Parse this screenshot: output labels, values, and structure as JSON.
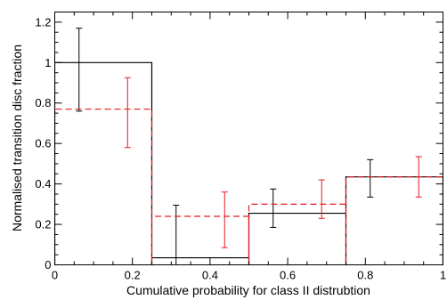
{
  "chart_data": {
    "type": "step",
    "title": "",
    "xlabel": "Cumulative probability for class II distrubtion",
    "ylabel": "Normalised transition disc fraction",
    "xlim": [
      0,
      1
    ],
    "ylim": [
      0,
      1.25
    ],
    "grid": false,
    "legend": "none",
    "x_ticks": [
      0,
      0.2,
      0.4,
      0.6,
      0.8,
      1
    ],
    "x_tick_labels": [
      "0",
      "0.2",
      "0.4",
      "0.6",
      "0.8",
      "1"
    ],
    "y_ticks": [
      0,
      0.2,
      0.4,
      0.6,
      0.8,
      1,
      1.2
    ],
    "y_tick_labels": [
      "0",
      "0.2",
      "0.4",
      "0.6",
      "0.8",
      "1",
      "1.2"
    ],
    "bin_edges": [
      0,
      0.25,
      0.5,
      0.75,
      1
    ],
    "series": [
      {
        "color": "#000000",
        "linestyle": "solid",
        "values": [
          1.0,
          0.035,
          0.255,
          0.435
        ],
        "error_x": [
          0.0625,
          0.3125,
          0.5625,
          0.8125
        ],
        "error_center": [
          0.965,
          0.095,
          0.28,
          0.43
        ],
        "error_low": [
          0.76,
          -0.105,
          0.185,
          0.335
        ],
        "error_high": [
          1.17,
          0.295,
          0.375,
          0.52
        ]
      },
      {
        "color": "#e8191e",
        "linestyle": "dashed",
        "values": [
          0.77,
          0.24,
          0.3,
          0.435
        ],
        "error_x": [
          0.1875,
          0.4375,
          0.6875,
          0.9375
        ],
        "error_center": [
          0.755,
          0.225,
          0.325,
          0.435
        ],
        "error_low": [
          0.58,
          0.085,
          0.23,
          0.335
        ],
        "error_high": [
          0.925,
          0.36,
          0.42,
          0.535
        ]
      }
    ]
  }
}
